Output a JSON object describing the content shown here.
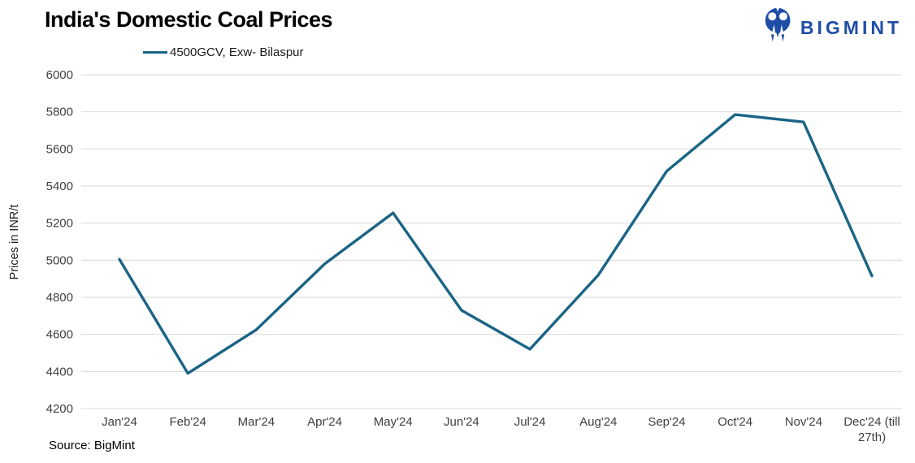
{
  "logo": {
    "text": "BIGMINT",
    "color": "#1e4da6",
    "icon": "bigmint-mark-icon"
  },
  "source_note": "Source: BigMint",
  "chart_data": {
    "type": "line",
    "title": "India's Domestic Coal Prices",
    "xlabel": "",
    "ylabel": "Prices in INR/t",
    "ylim": [
      4200,
      6000
    ],
    "yticks": [
      4200,
      4400,
      4600,
      4800,
      5000,
      5200,
      5400,
      5600,
      5800,
      6000
    ],
    "grid": true,
    "legend_position": "top-left",
    "grid_color": "#d9d9d9",
    "tick_label_color": "#3f3f3f",
    "categories": [
      "Jan'24",
      "Feb'24",
      "Mar'24",
      "Apr'24",
      "May'24",
      "Jun'24",
      "Jul'24",
      "Aug'24",
      "Sep'24",
      "Oct'24",
      "Nov'24",
      "Dec'24 (till\n27th)"
    ],
    "series": [
      {
        "name": "4500GCV, Exw- Bilaspur",
        "color": "#1b6485",
        "values": [
          5005,
          4390,
          4625,
          4980,
          5255,
          4730,
          4520,
          4920,
          5480,
          5785,
          5745,
          4915
        ]
      }
    ]
  }
}
